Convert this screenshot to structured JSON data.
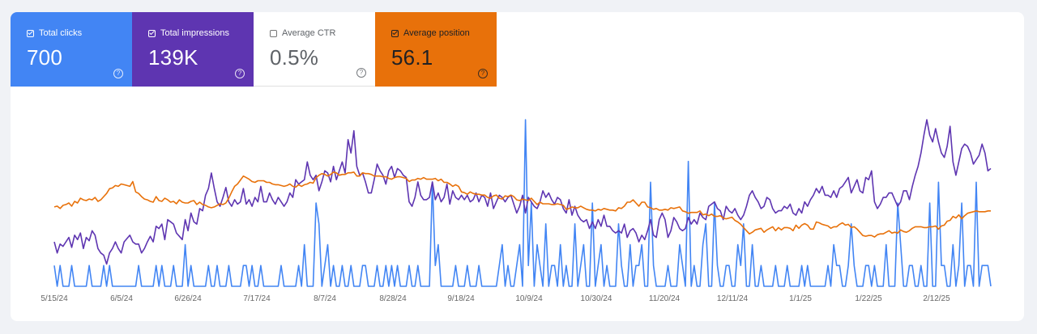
{
  "metric_cards": [
    {
      "label": "Total clicks",
      "value": "700",
      "checked": true,
      "bg": "#4285f4",
      "fg": "#ffffff",
      "help_icon": "question-circle-icon"
    },
    {
      "label": "Total impressions",
      "value": "139K",
      "checked": true,
      "bg": "#5e35b1",
      "fg": "#ffffff",
      "help_icon": "question-circle-icon"
    },
    {
      "label": "Average CTR",
      "value": "0.5%",
      "checked": false,
      "bg": "#ffffff",
      "fg": "#5f6368",
      "help_icon": "question-circle-icon"
    },
    {
      "label": "Average position",
      "value": "56.1",
      "checked": true,
      "bg": "#e8710a",
      "fg": "#202124",
      "help_icon": "question-circle-icon"
    }
  ],
  "chart_data": {
    "type": "line",
    "x_tick_labels": [
      "5/15/24",
      "6/5/24",
      "6/26/24",
      "7/17/24",
      "8/7/24",
      "8/28/24",
      "9/18/24",
      "10/9/24",
      "10/30/24",
      "11/20/24",
      "12/11/24",
      "1/1/25",
      "1/22/25",
      "2/12/25"
    ],
    "grid": false,
    "legend": "none",
    "series": [
      {
        "name": "Total clicks",
        "color": "#4285f4",
        "values": [
          1,
          0,
          1,
          0,
          0,
          0,
          1,
          0,
          0,
          0,
          0,
          0,
          1,
          0,
          0,
          0,
          0,
          1,
          0,
          1,
          0,
          0,
          0,
          0,
          0,
          0,
          0,
          0,
          0,
          1,
          0,
          0,
          0,
          0,
          0,
          1,
          0,
          1,
          0,
          0,
          0,
          1,
          0,
          0,
          0,
          2,
          0,
          1,
          0,
          0,
          0,
          0,
          0,
          1,
          0,
          0,
          1,
          0,
          0,
          0,
          1,
          0,
          0,
          0,
          0,
          1,
          1,
          0,
          1,
          0,
          0,
          1,
          0,
          0,
          0,
          0,
          0,
          0,
          1,
          0,
          0,
          0,
          0,
          0,
          1,
          0,
          2,
          0,
          0,
          0,
          4,
          3,
          0,
          1,
          2,
          0,
          1,
          0,
          0,
          1,
          0,
          0,
          1,
          0,
          0,
          0,
          1,
          1,
          0,
          0,
          0,
          1,
          0,
          0,
          1,
          0,
          1,
          0,
          1,
          0,
          0,
          0,
          1,
          0,
          0,
          1,
          0,
          0,
          0,
          0,
          5,
          1,
          2,
          0,
          0,
          0,
          0,
          0,
          1,
          0,
          0,
          0,
          1,
          0,
          0,
          0,
          1,
          0,
          0,
          0,
          0,
          0,
          0,
          1,
          2,
          0,
          1,
          0,
          0,
          1,
          2,
          0,
          8,
          1,
          4,
          0,
          2,
          1,
          0,
          3,
          0,
          1,
          1,
          0,
          2,
          0,
          1,
          0,
          0,
          3,
          0,
          1,
          2,
          0,
          0,
          4,
          0,
          1,
          2,
          0,
          1,
          0,
          0,
          0,
          3,
          1,
          0,
          0,
          2,
          0,
          1,
          1,
          2,
          0,
          0,
          5,
          1,
          0,
          0,
          0,
          0,
          1,
          0,
          0,
          0,
          2,
          1,
          0,
          6,
          0,
          1,
          0,
          0,
          2,
          3,
          0,
          0,
          4,
          1,
          0,
          0,
          1,
          1,
          0,
          0,
          2,
          1,
          3,
          0,
          0,
          2,
          0,
          0,
          1,
          0,
          0,
          0,
          0,
          1,
          0,
          0,
          0,
          1,
          0,
          0,
          0,
          0,
          1,
          0,
          1,
          0,
          0,
          0,
          0,
          0,
          0,
          1,
          0,
          2,
          1,
          1,
          0,
          0,
          1,
          3,
          1,
          0,
          0,
          0,
          1,
          1,
          0,
          1,
          0,
          0,
          0,
          2,
          0,
          0,
          0,
          4,
          2,
          0,
          0,
          1,
          1,
          0,
          0,
          1,
          0,
          0,
          4,
          0,
          0,
          5,
          1,
          1,
          0,
          0,
          2,
          0,
          1,
          4,
          0,
          1,
          1,
          0,
          5,
          0,
          1,
          1,
          1,
          0
        ]
      },
      {
        "name": "Total impressions",
        "color": "#5e35b1",
        "values": [
          200,
          150,
          190,
          180,
          200,
          220,
          175,
          230,
          210,
          240,
          170,
          220,
          205,
          250,
          230,
          170,
          150,
          140,
          100,
          150,
          170,
          200,
          170,
          150,
          200,
          215,
          230,
          200,
          190,
          190,
          150,
          170,
          200,
          225,
          200,
          270,
          260,
          280,
          210,
          300,
          290,
          280,
          240,
          225,
          210,
          300,
          250,
          330,
          290,
          280,
          350,
          340,
          410,
          440,
          510,
          440,
          380,
          360,
          400,
          445,
          380,
          360,
          390,
          370,
          380,
          440,
          370,
          390,
          360,
          400,
          380,
          450,
          380,
          380,
          420,
          390,
          370,
          400,
          380,
          360,
          380,
          420,
          400,
          480,
          460,
          470,
          480,
          560,
          500,
          480,
          500,
          430,
          470,
          520,
          510,
          470,
          540,
          480,
          520,
          560,
          510,
          660,
          600,
          700,
          540,
          500,
          510,
          470,
          420,
          420,
          480,
          550,
          520,
          500,
          460,
          520,
          540,
          490,
          530,
          520,
          500,
          490,
          380,
          360,
          400,
          470,
          410,
          390,
          390,
          400,
          470,
          390,
          420,
          380,
          400,
          460,
          370,
          430,
          400,
          390,
          410,
          390,
          410,
          380,
          390,
          420,
          380,
          410,
          400,
          360,
          420,
          350,
          380,
          410,
          400,
          380,
          400,
          410,
          370,
          330,
          360,
          410,
          330,
          400,
          380,
          360,
          350,
          380,
          430,
          400,
          420,
          390,
          370,
          400,
          390,
          350,
          330,
          390,
          320,
          360,
          320,
          300,
          290,
          300,
          260,
          290,
          260,
          300,
          270,
          320,
          270,
          270,
          250,
          240,
          250,
          240,
          280,
          220,
          250,
          260,
          240,
          200,
          230,
          210,
          250,
          300,
          230,
          220,
          300,
          330,
          300,
          220,
          250,
          310,
          290,
          260,
          250,
          260,
          310,
          280,
          300,
          280,
          330,
          310,
          300,
          360,
          370,
          380,
          350,
          340,
          300,
          360,
          340,
          330,
          350,
          320,
          300,
          320,
          360,
          410,
          430,
          400,
          380,
          350,
          360,
          400,
          390,
          350,
          330,
          340,
          340,
          360,
          350,
          370,
          330,
          320,
          350,
          330,
          380,
          360,
          390,
          410,
          440,
          420,
          450,
          410,
          410,
          400,
          430,
          400,
          440,
          450,
          470,
          490,
          420,
          450,
          480,
          430,
          420,
          490,
          480,
          520,
          380,
          350,
          370,
          400,
          400,
          420,
          420,
          390,
          360,
          380,
          430,
          430,
          390,
          450,
          500,
          540,
          600,
          680,
          750,
          680,
          650,
          710,
          650,
          600,
          580,
          630,
          720,
          560,
          500,
          560,
          620,
          640,
          630,
          600,
          550,
          570,
          590,
          640,
          600,
          520,
          530
        ]
      },
      {
        "name": "Average position",
        "color": "#e8710a",
        "values": [
          44,
          45,
          42,
          46,
          47,
          49,
          45,
          51,
          49,
          55,
          53,
          52,
          54,
          53,
          56,
          51,
          53,
          57,
          61,
          67,
          68,
          71,
          70,
          73,
          72,
          71,
          70,
          76,
          63,
          61,
          57,
          54,
          53,
          51,
          50,
          57,
          52,
          51,
          55,
          53,
          50,
          51,
          48,
          53,
          50,
          49,
          49,
          51,
          52,
          47,
          50,
          47,
          46,
          44,
          43,
          44,
          46,
          48,
          47,
          49,
          55,
          63,
          70,
          73,
          78,
          83,
          81,
          79,
          76,
          75,
          77,
          77,
          77,
          75,
          75,
          73,
          72,
          72,
          71,
          70,
          71,
          73,
          70,
          69,
          72,
          70,
          72,
          73,
          75,
          74,
          81,
          84,
          86,
          85,
          83,
          85,
          88,
          87,
          84,
          85,
          85,
          87,
          87,
          88,
          83,
          83,
          87,
          86,
          86,
          85,
          83,
          83,
          83,
          82,
          82,
          80,
          79,
          81,
          82,
          82,
          81,
          80,
          76,
          78,
          78,
          80,
          79,
          81,
          79,
          79,
          79,
          80,
          77,
          79,
          75,
          75,
          73,
          70,
          72,
          70,
          63,
          62,
          60,
          63,
          61,
          60,
          60,
          59,
          59,
          56,
          55,
          58,
          59,
          55,
          54,
          58,
          57,
          59,
          57,
          53,
          52,
          54,
          53,
          52,
          55,
          51,
          47,
          50,
          48,
          48,
          48,
          47,
          47,
          48,
          47,
          46,
          41,
          42,
          44,
          43,
          43,
          45,
          43,
          41,
          40,
          40,
          39,
          41,
          40,
          42,
          41,
          40,
          40,
          39,
          43,
          42,
          45,
          50,
          50,
          53,
          49,
          45,
          50,
          50,
          44,
          43,
          41,
          42,
          40,
          40,
          41,
          40,
          43,
          42,
          43,
          44,
          39,
          38,
          36,
          37,
          37,
          37,
          39,
          34,
          35,
          33,
          35,
          32,
          32,
          33,
          30,
          29,
          30,
          31,
          27,
          25,
          22,
          18,
          14,
          10,
          12,
          15,
          16,
          17,
          12,
          15,
          17,
          19,
          14,
          18,
          15,
          18,
          18,
          17,
          14,
          21,
          17,
          21,
          23,
          21,
          16,
          16,
          25,
          24,
          22,
          21,
          20,
          17,
          19,
          19,
          22,
          24,
          21,
          22,
          18,
          19,
          16,
          12,
          8,
          7,
          8,
          8,
          6,
          9,
          10,
          10,
          12,
          14,
          11,
          12,
          11,
          15,
          13,
          12,
          14,
          17,
          19,
          19,
          19,
          18,
          18,
          19,
          19,
          20,
          16,
          20,
          21,
          26,
          27,
          32,
          30,
          34,
          29,
          33,
          36,
          37,
          38,
          39,
          38,
          38,
          38,
          39,
          39
        ]
      }
    ]
  }
}
